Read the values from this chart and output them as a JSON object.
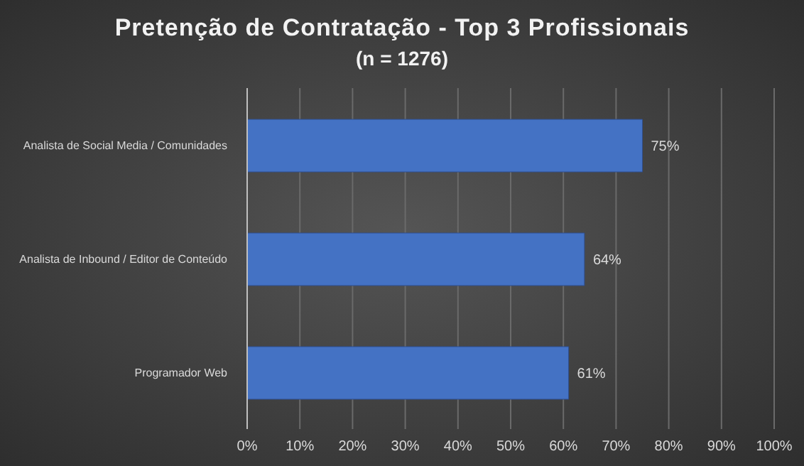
{
  "chart_data": {
    "type": "bar",
    "orientation": "horizontal",
    "title": "Pretenção de Contratação - Top 3 Profissionais",
    "subtitle": "(n = 1276)",
    "categories": [
      "Analista de Social Media / Comunidades",
      "Analista de Inbound / Editor de Conteúdo",
      "Programador Web"
    ],
    "values": [
      75,
      64,
      61
    ],
    "value_labels": [
      "75%",
      "64%",
      "61%"
    ],
    "color": "#4472c4",
    "xlim": [
      0,
      100
    ],
    "xticks": [
      {
        "value": 0,
        "label": "0%"
      },
      {
        "value": 10,
        "label": "10%"
      },
      {
        "value": 20,
        "label": "20%"
      },
      {
        "value": 30,
        "label": "30%"
      },
      {
        "value": 40,
        "label": "40%"
      },
      {
        "value": 50,
        "label": "50%"
      },
      {
        "value": 60,
        "label": "60%"
      },
      {
        "value": 70,
        "label": "70%"
      },
      {
        "value": 80,
        "label": "80%"
      },
      {
        "value": 90,
        "label": "90%"
      },
      {
        "value": 100,
        "label": "100%"
      }
    ],
    "grid": "x"
  }
}
